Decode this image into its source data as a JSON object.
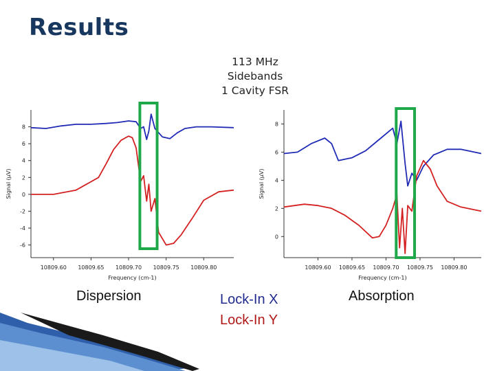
{
  "slide": {
    "title": "Results",
    "annotation": [
      "113 MHz",
      "Sidebands",
      "1 Cavity FSR"
    ],
    "dispersion_label": "Dispersion",
    "absorption_label": "Absorption",
    "legend_x": "Lock-In X",
    "legend_y": "Lock-In Y"
  },
  "colors": {
    "title": "#17375e",
    "series_x": "#1f2ab5",
    "series_y": "#d42020",
    "highlight": "#1ea84a"
  },
  "chart_data": [
    {
      "type": "line",
      "xlabel": "Frequency (cm-1)",
      "ylabel": "Signal (µV)",
      "xlim": [
        10809.57,
        10809.84
      ],
      "ylim": [
        -7.5,
        10
      ],
      "xticks": [
        "10809.60",
        "10809.65",
        "10809.70",
        "10809.75",
        "10809.80"
      ],
      "yticks": [
        "8",
        "6",
        "4",
        "2",
        "0",
        "-2",
        "-4",
        "-6"
      ],
      "highlight_x": [
        10809.715,
        10809.738
      ],
      "series": [
        {
          "name": "Lock-In X",
          "x": [
            10809.57,
            10809.59,
            10809.61,
            10809.63,
            10809.65,
            10809.67,
            10809.685,
            10809.7,
            10809.71,
            10809.716,
            10809.72,
            10809.724,
            10809.727,
            10809.73,
            10809.735,
            10809.745,
            10809.755,
            10809.765,
            10809.775,
            10809.79,
            10809.81,
            10809.84
          ],
          "y": [
            7.9,
            7.8,
            8.1,
            8.3,
            8.3,
            8.4,
            8.5,
            8.7,
            8.6,
            7.8,
            8.0,
            6.5,
            7.5,
            9.5,
            7.8,
            6.8,
            6.6,
            7.3,
            7.8,
            8.0,
            8.0,
            7.9
          ]
        },
        {
          "name": "Lock-In Y",
          "x": [
            10809.57,
            10809.6,
            10809.63,
            10809.66,
            10809.67,
            10809.68,
            10809.69,
            10809.7,
            10809.705,
            10809.71,
            10809.716,
            10809.72,
            10809.724,
            10809.727,
            10809.73,
            10809.735,
            10809.74,
            10809.75,
            10809.76,
            10809.77,
            10809.785,
            10809.8,
            10809.82,
            10809.84
          ],
          "y": [
            0.0,
            0.0,
            0.5,
            2.0,
            3.6,
            5.3,
            6.4,
            6.9,
            6.7,
            5.5,
            1.5,
            2.2,
            -0.8,
            1.2,
            -2.0,
            -0.5,
            -4.5,
            -6.0,
            -5.8,
            -4.8,
            -2.8,
            -0.7,
            0.3,
            0.5
          ]
        }
      ]
    },
    {
      "type": "line",
      "xlabel": "Frequency (cm-1)",
      "ylabel": "Signal (µV)",
      "xlim": [
        10809.55,
        10809.84
      ],
      "ylim": [
        -1.5,
        9
      ],
      "xticks": [
        "10809.60",
        "10809.65",
        "10809.70",
        "10809.75",
        "10809.80"
      ],
      "yticks": [
        "8",
        "6",
        "4",
        "2",
        "0"
      ],
      "highlight_x": [
        10809.715,
        10809.742
      ],
      "series": [
        {
          "name": "Lock-In X",
          "x": [
            10809.55,
            10809.57,
            10809.59,
            10809.61,
            10809.62,
            10809.63,
            10809.65,
            10809.67,
            10809.69,
            10809.71,
            10809.716,
            10809.722,
            10809.728,
            10809.732,
            10809.738,
            10809.745,
            10809.755,
            10809.77,
            10809.79,
            10809.81,
            10809.84
          ],
          "y": [
            5.9,
            6.0,
            6.6,
            7.0,
            6.6,
            5.4,
            5.6,
            6.1,
            6.9,
            7.7,
            6.6,
            8.2,
            5.2,
            3.6,
            4.5,
            4.0,
            5.0,
            5.8,
            6.2,
            6.2,
            5.9
          ],
          "aside": ""
        },
        {
          "name": "Lock-In Y",
          "x": [
            10809.55,
            10809.58,
            10809.6,
            10809.62,
            10809.64,
            10809.66,
            10809.68,
            10809.69,
            10809.7,
            10809.71,
            10809.716,
            10809.72,
            10809.724,
            10809.728,
            10809.732,
            10809.738,
            10809.745,
            10809.755,
            10809.765,
            10809.775,
            10809.79,
            10809.81,
            10809.84
          ],
          "y": [
            2.1,
            2.3,
            2.2,
            2.0,
            1.5,
            0.8,
            -0.1,
            0.0,
            0.8,
            2.0,
            3.0,
            -0.8,
            2.0,
            -1.2,
            2.2,
            1.8,
            4.3,
            5.4,
            4.8,
            3.6,
            2.5,
            2.1,
            1.8
          ]
        }
      ]
    }
  ]
}
